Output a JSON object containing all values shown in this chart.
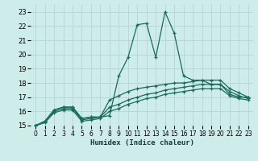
{
  "xlabel": "Humidex (Indice chaleur)",
  "background_color": "#ceecea",
  "grid_color": "#b8d8d4",
  "line_color": "#1a6b5a",
  "xlim": [
    -0.5,
    23.5
  ],
  "ylim": [
    15,
    23.5
  ],
  "xticks": [
    0,
    1,
    2,
    3,
    4,
    5,
    6,
    7,
    8,
    9,
    10,
    11,
    12,
    13,
    14,
    15,
    16,
    17,
    18,
    19,
    20,
    21,
    22,
    23
  ],
  "yticks": [
    15,
    16,
    17,
    18,
    19,
    20,
    21,
    22,
    23
  ],
  "curves": [
    {
      "x": [
        0,
        1,
        2,
        3,
        4,
        5,
        6,
        7,
        8,
        9,
        10,
        11,
        12,
        13,
        14,
        15,
        16,
        17,
        18,
        19,
        20,
        21,
        22,
        23
      ],
      "y": [
        15.0,
        15.3,
        16.1,
        16.3,
        16.3,
        15.5,
        15.6,
        15.6,
        15.7,
        18.5,
        19.8,
        22.1,
        22.2,
        19.8,
        23.0,
        21.5,
        18.5,
        18.2,
        18.2,
        17.9,
        17.9,
        17.2,
        17.0,
        17.0
      ]
    },
    {
      "x": [
        0,
        1,
        2,
        3,
        4,
        5,
        6,
        7,
        8,
        9,
        10,
        11,
        12,
        13,
        14,
        15,
        16,
        17,
        18,
        19,
        20,
        21,
        22,
        23
      ],
      "y": [
        15.0,
        15.3,
        16.1,
        16.3,
        16.3,
        15.5,
        15.6,
        15.6,
        16.8,
        17.1,
        17.4,
        17.6,
        17.7,
        17.8,
        17.9,
        18.0,
        18.0,
        18.1,
        18.2,
        18.2,
        18.2,
        17.6,
        17.3,
        17.0
      ]
    },
    {
      "x": [
        0,
        1,
        2,
        3,
        4,
        5,
        6,
        7,
        8,
        9,
        10,
        11,
        12,
        13,
        14,
        15,
        16,
        17,
        18,
        19,
        20,
        21,
        22,
        23
      ],
      "y": [
        15.0,
        15.3,
        16.0,
        16.2,
        16.2,
        15.4,
        15.5,
        15.6,
        16.3,
        16.5,
        16.8,
        17.0,
        17.2,
        17.3,
        17.5,
        17.6,
        17.7,
        17.8,
        17.9,
        17.9,
        17.9,
        17.4,
        17.1,
        16.9
      ]
    },
    {
      "x": [
        0,
        1,
        2,
        3,
        4,
        5,
        6,
        7,
        8,
        9,
        10,
        11,
        12,
        13,
        14,
        15,
        16,
        17,
        18,
        19,
        20,
        21,
        22,
        23
      ],
      "y": [
        15.0,
        15.2,
        15.9,
        16.1,
        16.1,
        15.3,
        15.4,
        15.5,
        16.0,
        16.2,
        16.5,
        16.7,
        16.9,
        17.0,
        17.2,
        17.3,
        17.4,
        17.5,
        17.6,
        17.6,
        17.6,
        17.1,
        16.9,
        16.8
      ]
    }
  ]
}
